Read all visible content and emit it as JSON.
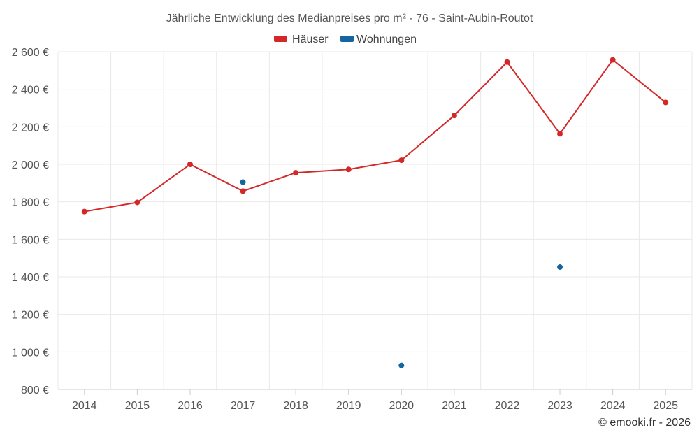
{
  "chart_data": {
    "type": "line",
    "title": "Jährliche Entwicklung des Medianpreises pro m² - 76 - Saint-Aubin-Routot",
    "categories": [
      "2014",
      "2015",
      "2016",
      "2017",
      "2018",
      "2019",
      "2020",
      "2021",
      "2022",
      "2023",
      "2024",
      "2025"
    ],
    "series": [
      {
        "name": "Häuser",
        "color": "#d42828",
        "values": [
          1748,
          1797,
          2000,
          1857,
          1955,
          1973,
          2022,
          2260,
          2545,
          2163,
          2557,
          2330
        ]
      },
      {
        "name": "Wohnungen",
        "color": "#1565a0",
        "values": [
          null,
          null,
          null,
          1905,
          null,
          null,
          928,
          null,
          null,
          1452,
          null,
          null
        ]
      }
    ],
    "ylim": [
      800,
      2600
    ],
    "yticks": [
      800,
      1000,
      1200,
      1400,
      1600,
      1800,
      2000,
      2200,
      2400,
      2600
    ],
    "ytick_labels": [
      "800 €",
      "1 000 €",
      "1 200 €",
      "1 400 €",
      "1 600 €",
      "1 800 €",
      "2 000 €",
      "2 200 €",
      "2 400 €",
      "2 600 €"
    ],
    "xlabel": "",
    "ylabel": "",
    "legend_position": "top-center",
    "grid": true
  },
  "credit": "© emooki.fr - 2026"
}
